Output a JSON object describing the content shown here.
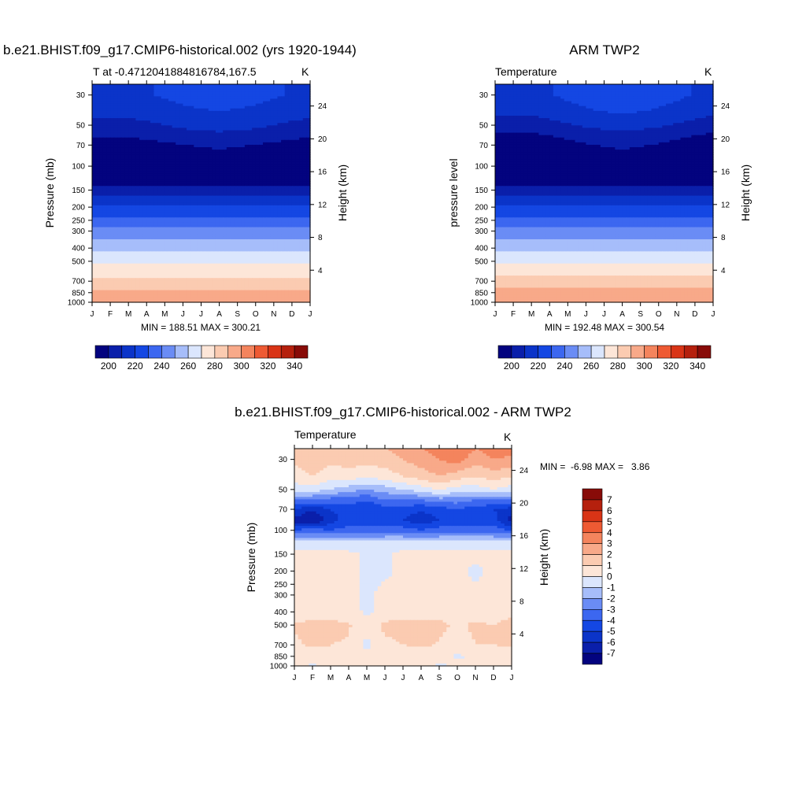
{
  "panels": [
    {
      "id": "model",
      "title": "b.e21.BHIST.f09_g17.CMIP6-historical.002 (yrs 1920-1944)",
      "left_label": "T at -0.4712041884816784,167.5",
      "right_label": "K",
      "ylabel_left": "Pressure (mb)",
      "ylabel_right": "Height (km)",
      "stats": "MIN = 188.51 MAX = 300.21"
    },
    {
      "id": "obs",
      "title": "ARM TWP2",
      "left_label": "Temperature",
      "right_label": "K",
      "ylabel_left": "pressure level",
      "ylabel_right": "Height (km)",
      "stats": "MIN = 192.48 MAX = 300.54"
    },
    {
      "id": "diff",
      "title": "b.e21.BHIST.f09_g17.CMIP6-historical.002 - ARM TWP2",
      "left_label": "Temperature",
      "right_label": "K",
      "ylabel_left": "Pressure (mb)",
      "ylabel_right": "Height (km)",
      "stats": "MIN =  -6.98 MAX =   3.86"
    }
  ],
  "chart_data": [
    {
      "type": "heatmap",
      "title": "b.e21.BHIST.f09_g17.CMIP6-historical.002 (yrs 1920-1944)",
      "variable": "T",
      "units": "K",
      "x": [
        "J",
        "F",
        "M",
        "A",
        "M",
        "J",
        "J",
        "A",
        "S",
        "O",
        "N",
        "D",
        "J"
      ],
      "y_pressure_mb": [
        30,
        50,
        70,
        100,
        150,
        200,
        250,
        300,
        400,
        500,
        700,
        850,
        1000
      ],
      "y_height_km": [
        24,
        20,
        16,
        12,
        8,
        4
      ],
      "profile_K": [
        {
          "p": 30,
          "t": 221
        },
        {
          "p": 40,
          "t": 216
        },
        {
          "p": 50,
          "t": 210
        },
        {
          "p": 60,
          "t": 204
        },
        {
          "p": 70,
          "t": 198
        },
        {
          "p": 100,
          "t": 193
        },
        {
          "p": 130,
          "t": 195
        },
        {
          "p": 150,
          "t": 206
        },
        {
          "p": 175,
          "t": 213
        },
        {
          "p": 200,
          "t": 222
        },
        {
          "p": 250,
          "t": 233
        },
        {
          "p": 300,
          "t": 244
        },
        {
          "p": 400,
          "t": 257
        },
        {
          "p": 500,
          "t": 268
        },
        {
          "p": 600,
          "t": 276
        },
        {
          "p": 700,
          "t": 283
        },
        {
          "p": 850,
          "t": 293
        },
        {
          "p": 950,
          "t": 299
        },
        {
          "p": 1000,
          "t": 300
        }
      ],
      "levels": [
        190,
        200,
        210,
        220,
        230,
        240,
        250,
        260,
        270,
        280,
        290,
        300,
        310,
        320,
        330,
        340,
        350
      ],
      "min": 188.51,
      "max": 300.21
    },
    {
      "type": "heatmap",
      "title": "ARM TWP2",
      "variable": "Temperature",
      "units": "K",
      "x": [
        "J",
        "F",
        "M",
        "A",
        "M",
        "J",
        "J",
        "A",
        "S",
        "O",
        "N",
        "D",
        "J"
      ],
      "y_pressure_mb": [
        30,
        50,
        70,
        100,
        150,
        200,
        250,
        300,
        400,
        500,
        700,
        850,
        1000
      ],
      "y_height_km": [
        24,
        20,
        16,
        12,
        8,
        4
      ],
      "profile_K": [
        {
          "p": 30,
          "t": 222
        },
        {
          "p": 40,
          "t": 216
        },
        {
          "p": 50,
          "t": 209
        },
        {
          "p": 60,
          "t": 202
        },
        {
          "p": 70,
          "t": 197
        },
        {
          "p": 100,
          "t": 193
        },
        {
          "p": 130,
          "t": 196
        },
        {
          "p": 150,
          "t": 206
        },
        {
          "p": 175,
          "t": 214
        },
        {
          "p": 200,
          "t": 223
        },
        {
          "p": 250,
          "t": 233
        },
        {
          "p": 300,
          "t": 244
        },
        {
          "p": 400,
          "t": 257
        },
        {
          "p": 500,
          "t": 268
        },
        {
          "p": 600,
          "t": 276
        },
        {
          "p": 700,
          "t": 284
        },
        {
          "p": 850,
          "t": 293
        },
        {
          "p": 950,
          "t": 299
        },
        {
          "p": 1000,
          "t": 300
        }
      ],
      "levels": [
        190,
        200,
        210,
        220,
        230,
        240,
        250,
        260,
        270,
        280,
        290,
        300,
        310,
        320,
        330,
        340,
        350
      ],
      "min": 192.48,
      "max": 300.54
    },
    {
      "type": "heatmap",
      "title": "b.e21.BHIST.f09_g17.CMIP6-historical.002 - ARM TWP2",
      "variable": "Temperature difference",
      "units": "K",
      "x": [
        "J",
        "F",
        "M",
        "A",
        "M",
        "J",
        "J",
        "A",
        "S",
        "O",
        "N",
        "D",
        "J"
      ],
      "y_pressure_mb": [
        30,
        50,
        70,
        100,
        150,
        200,
        250,
        300,
        400,
        500,
        700,
        850,
        1000
      ],
      "y_height_km": [
        24,
        20,
        16,
        12,
        8,
        4
      ],
      "rows_p": [
        25,
        30,
        40,
        50,
        60,
        70,
        85,
        100,
        120,
        150,
        200,
        300,
        400,
        500,
        700,
        850,
        1000
      ],
      "months_x": [
        0,
        1,
        2,
        3,
        4,
        5,
        6,
        7,
        8,
        9,
        10,
        11,
        12
      ],
      "grid": [
        [
          1.5,
          1.5,
          1.5,
          2.0,
          2.0,
          2.0,
          2.5,
          3.0,
          3.5,
          3.8,
          3.0,
          3.5,
          3.5
        ],
        [
          1.2,
          1.5,
          1.2,
          1.5,
          1.5,
          1.5,
          2.0,
          2.5,
          3.0,
          3.5,
          2.5,
          3.0,
          2.8
        ],
        [
          0.5,
          1.0,
          0.5,
          0.5,
          0.2,
          0.5,
          1.0,
          1.5,
          2.0,
          1.5,
          1.0,
          1.5,
          1.0
        ],
        [
          -0.5,
          -0.5,
          -1.0,
          -1.5,
          -2.0,
          -1.5,
          -1.0,
          -0.5,
          0.2,
          -0.5,
          -0.5,
          0.0,
          -0.5
        ],
        [
          -3.0,
          -3.0,
          -3.5,
          -3.5,
          -4.0,
          -3.0,
          -3.0,
          -3.0,
          -2.5,
          -2.5,
          -3.0,
          -3.0,
          -3.0
        ],
        [
          -5.0,
          -6.0,
          -5.0,
          -4.5,
          -5.0,
          -4.5,
          -4.5,
          -5.0,
          -4.5,
          -4.0,
          -4.5,
          -5.0,
          -5.5
        ],
        [
          -6.5,
          -7.0,
          -5.5,
          -4.5,
          -4.0,
          -4.5,
          -5.0,
          -5.5,
          -5.0,
          -4.5,
          -4.5,
          -4.5,
          -6.5
        ],
        [
          -4.0,
          -3.5,
          -4.0,
          -3.5,
          -4.0,
          -3.5,
          -3.5,
          -4.0,
          -3.5,
          -3.5,
          -3.5,
          -3.5,
          -4.0
        ],
        [
          -1.0,
          -1.0,
          -1.0,
          -1.0,
          -1.0,
          -1.0,
          -1.0,
          -1.0,
          -1.0,
          -1.0,
          -1.0,
          -1.0,
          -1.0
        ],
        [
          0.3,
          0.4,
          0.4,
          0.3,
          -0.2,
          -0.3,
          0.4,
          0.3,
          0.4,
          0.4,
          0.3,
          0.3,
          0.3
        ],
        [
          0.4,
          0.4,
          0.4,
          0.4,
          -0.3,
          -0.3,
          0.4,
          0.4,
          0.4,
          0.4,
          -0.3,
          0.4,
          0.4
        ],
        [
          0.3,
          0.4,
          0.4,
          0.4,
          -0.3,
          0.4,
          0.4,
          0.4,
          0.4,
          0.3,
          0.3,
          0.4,
          0.3
        ],
        [
          0.5,
          0.5,
          0.5,
          0.5,
          -0.2,
          0.4,
          0.5,
          0.5,
          0.5,
          0.4,
          0.4,
          0.4,
          0.8
        ],
        [
          1.1,
          1.3,
          1.3,
          1.1,
          0.5,
          1.2,
          1.4,
          1.4,
          1.3,
          0.8,
          1.2,
          1.0,
          1.4
        ],
        [
          0.8,
          1.2,
          1.0,
          0.9,
          -0.3,
          0.8,
          1.0,
          1.2,
          0.9,
          0.5,
          1.0,
          1.0,
          1.1
        ],
        [
          0.5,
          0.4,
          0.6,
          0.4,
          0.5,
          0.4,
          0.3,
          0.3,
          0.5,
          -0.2,
          0.3,
          0.5,
          0.5
        ],
        [
          0.4,
          -0.2,
          0.4,
          0.2,
          0.3,
          0.3,
          0.2,
          0.3,
          -0.2,
          0.3,
          0.3,
          0.4,
          0.3
        ]
      ],
      "levels": [
        -8,
        -7,
        -6,
        -5,
        -4,
        -3,
        -2,
        -1,
        0,
        1,
        2,
        3,
        4,
        5,
        6,
        7,
        8
      ],
      "min": -6.98,
      "max": 3.86
    }
  ],
  "colorbars": [
    {
      "id": "abs",
      "labels": [
        "200",
        "220",
        "240",
        "260",
        "280",
        "300",
        "320",
        "340"
      ],
      "colors": [
        "#03037f",
        "#0a1faa",
        "#0b34c9",
        "#1447e3",
        "#3c67f0",
        "#6a8cf5",
        "#a6bdfa",
        "#dbe6fd",
        "#fde6d8",
        "#fbcbb1",
        "#f8a989",
        "#f4845d",
        "#ee5a33",
        "#d93416",
        "#b5200d",
        "#880b08"
      ]
    },
    {
      "id": "diff",
      "labels": [
        "7",
        "6",
        "5",
        "4",
        "3",
        "2",
        "1",
        "0",
        "-1",
        "-2",
        "-3",
        "-4",
        "-5",
        "-6",
        "-7"
      ],
      "colors": [
        "#03037f",
        "#0a1faa",
        "#0b34c9",
        "#1447e3",
        "#3c67f0",
        "#6a8cf5",
        "#a6bdfa",
        "#dbe6fd",
        "#fde6d8",
        "#fbcbb1",
        "#f8a989",
        "#f4845d",
        "#ee5a33",
        "#d93416",
        "#b5200d",
        "#880b08"
      ]
    }
  ],
  "axes": {
    "months": [
      "J",
      "F",
      "M",
      "A",
      "M",
      "J",
      "J",
      "A",
      "S",
      "O",
      "N",
      "D",
      "J"
    ],
    "pressure_ticks": [
      "30",
      "50",
      "70",
      "100",
      "150",
      "200",
      "250",
      "300",
      "400",
      "500",
      "700",
      "850",
      "1000"
    ],
    "height_ticks": [
      "24",
      "20",
      "16",
      "12",
      "8",
      "4"
    ]
  }
}
